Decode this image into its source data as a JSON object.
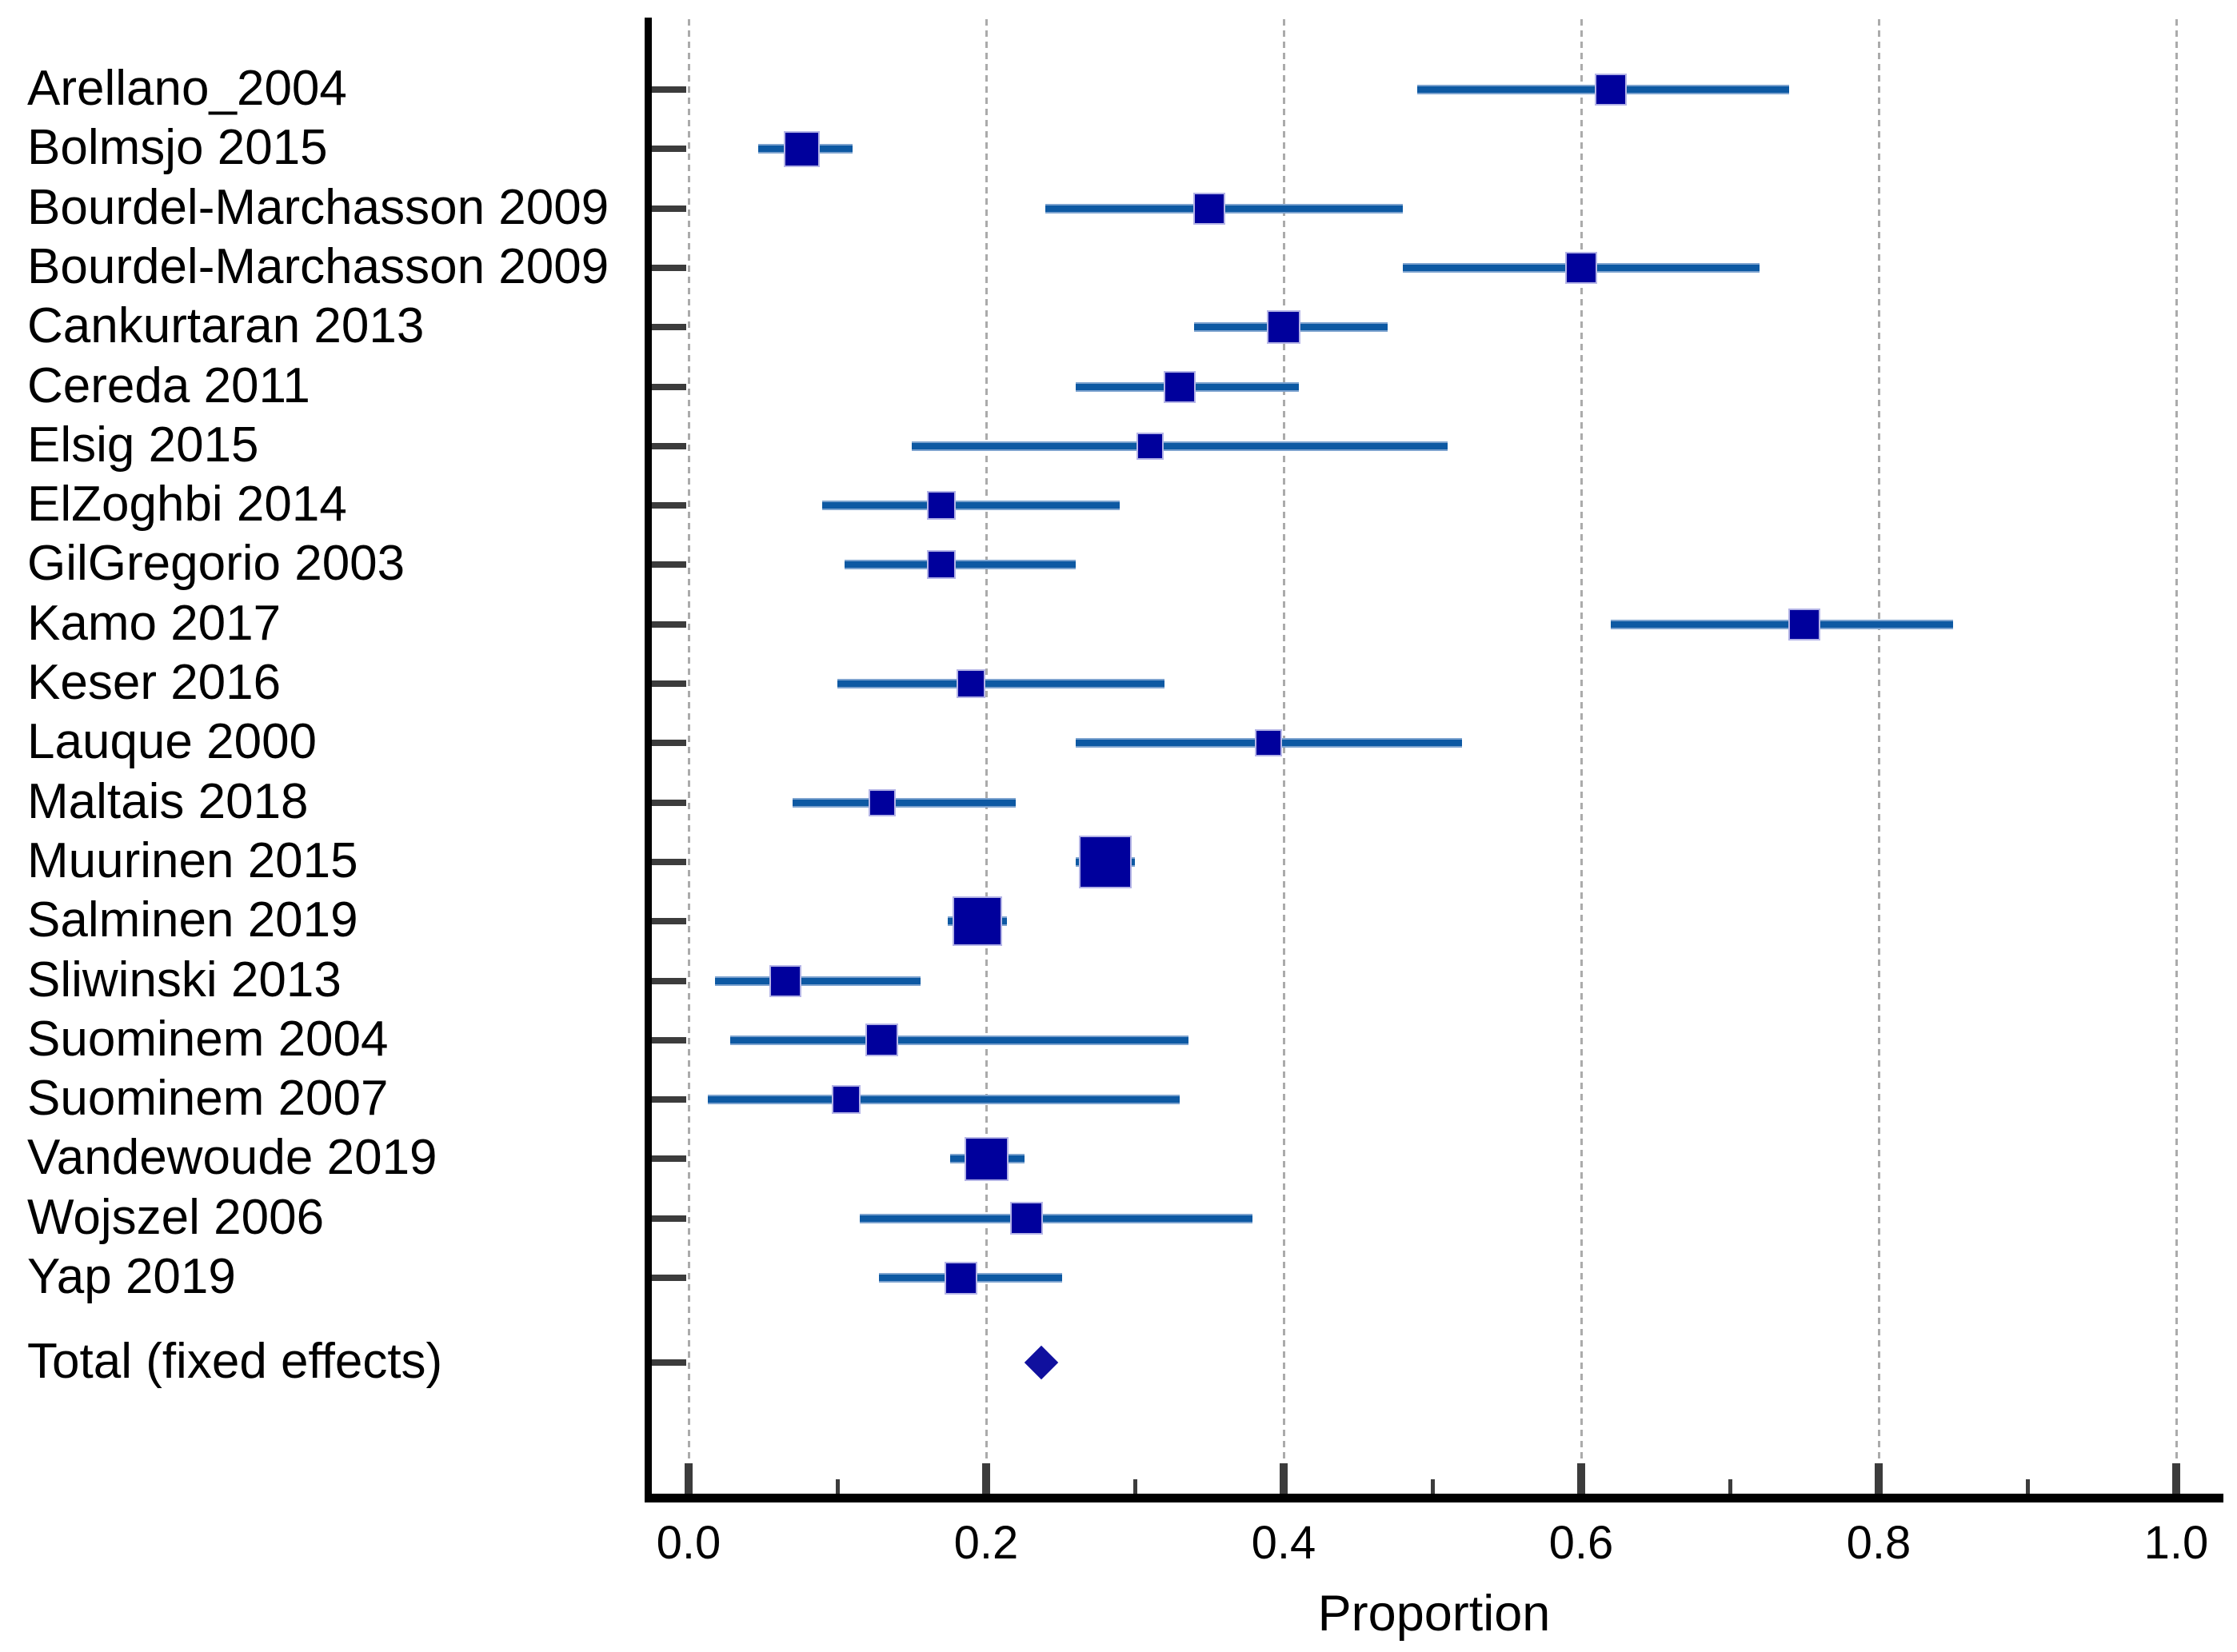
{
  "figure": {
    "kind": "forest-plot",
    "background": "#ffffff"
  },
  "colors": {
    "square_fill": "#00009c",
    "square_border": "#b4b4e6",
    "ci_line_core": "#0d59a3",
    "ci_line_edge": "#7da3cf",
    "diamond_fill": "#10109e",
    "gridline": "#ababab",
    "axis_line": "#000000",
    "tick": "#3c3c3c",
    "text": "#000000"
  },
  "chart_data": {
    "type": "scatter",
    "variant": "forest-plot (proportion meta-analysis, point estimate squares sized by weight with 95% CI lines, fixed-effects total diamond)",
    "title": "",
    "xlabel": "Proportion",
    "ylabel": "",
    "xlim": [
      0.0,
      1.0
    ],
    "x_major_ticks": [
      0.0,
      0.2,
      0.4,
      0.6,
      0.8,
      1.0
    ],
    "x_major_tick_labels": [
      "0.0",
      "0.2",
      "0.4",
      "0.6",
      "0.8",
      "1.0"
    ],
    "x_minor_ticks": [
      0.1,
      0.3,
      0.5,
      0.7,
      0.9
    ],
    "grid": "vertical dashed gray lines at major ticks",
    "legend": null,
    "studies": [
      {
        "label": "Arellano_2004",
        "proportion": 0.62,
        "ci_low": 0.49,
        "ci_high": 0.74,
        "marker_px": 40
      },
      {
        "label": "Bolmsjo 2015",
        "proportion": 0.076,
        "ci_low": 0.047,
        "ci_high": 0.11,
        "marker_px": 45
      },
      {
        "label": "Bourdel-Marchasson 2009",
        "proportion": 0.35,
        "ci_low": 0.24,
        "ci_high": 0.48,
        "marker_px": 40
      },
      {
        "label": "Bourdel-Marchasson 2009",
        "proportion": 0.6,
        "ci_low": 0.48,
        "ci_high": 0.72,
        "marker_px": 40
      },
      {
        "label": "Cankurtaran 2013",
        "proportion": 0.4,
        "ci_low": 0.34,
        "ci_high": 0.47,
        "marker_px": 42
      },
      {
        "label": "Cereda 2011",
        "proportion": 0.33,
        "ci_low": 0.26,
        "ci_high": 0.41,
        "marker_px": 40
      },
      {
        "label": "Elsig 2015",
        "proportion": 0.31,
        "ci_low": 0.15,
        "ci_high": 0.51,
        "marker_px": 34
      },
      {
        "label": "ElZoghbi 2014",
        "proportion": 0.17,
        "ci_low": 0.09,
        "ci_high": 0.29,
        "marker_px": 36
      },
      {
        "label": "GilGregorio 2003",
        "proportion": 0.17,
        "ci_low": 0.105,
        "ci_high": 0.26,
        "marker_px": 36
      },
      {
        "label": "Kamo 2017",
        "proportion": 0.75,
        "ci_low": 0.62,
        "ci_high": 0.85,
        "marker_px": 40
      },
      {
        "label": "Keser 2016",
        "proportion": 0.19,
        "ci_low": 0.1,
        "ci_high": 0.32,
        "marker_px": 36
      },
      {
        "label": "Lauque 2000",
        "proportion": 0.39,
        "ci_low": 0.26,
        "ci_high": 0.52,
        "marker_px": 34
      },
      {
        "label": "Maltais 2018",
        "proportion": 0.13,
        "ci_low": 0.07,
        "ci_high": 0.22,
        "marker_px": 34
      },
      {
        "label": "Muurinen 2015",
        "proportion": 0.28,
        "ci_low": 0.26,
        "ci_high": 0.3,
        "marker_px": 66
      },
      {
        "label": "Salminen 2019",
        "proportion": 0.194,
        "ci_low": 0.174,
        "ci_high": 0.214,
        "marker_px": 62
      },
      {
        "label": "Sliwinski 2013",
        "proportion": 0.065,
        "ci_low": 0.018,
        "ci_high": 0.156,
        "marker_px": 40
      },
      {
        "label": "Suominem 2004",
        "proportion": 0.13,
        "ci_low": 0.028,
        "ci_high": 0.336,
        "marker_px": 41
      },
      {
        "label": "Suominem 2007",
        "proportion": 0.106,
        "ci_low": 0.013,
        "ci_high": 0.33,
        "marker_px": 36
      },
      {
        "label": "Vandewoude 2019",
        "proportion": 0.2,
        "ci_low": 0.176,
        "ci_high": 0.226,
        "marker_px": 55
      },
      {
        "label": "Wojszel 2006",
        "proportion": 0.227,
        "ci_low": 0.115,
        "ci_high": 0.379,
        "marker_px": 41
      },
      {
        "label": "Yap 2019",
        "proportion": 0.183,
        "ci_low": 0.128,
        "ci_high": 0.251,
        "marker_px": 41
      }
    ],
    "total": {
      "label": "Total (fixed effects)",
      "proportion": 0.237,
      "ci_low": 0.226,
      "ci_high": 0.248
    }
  }
}
